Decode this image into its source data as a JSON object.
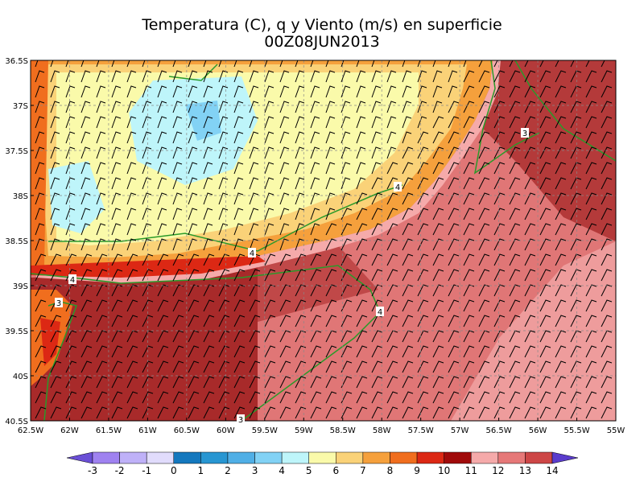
{
  "header": {
    "title": "Temperatura (C), q y Viento (m/s) en superficie",
    "subtitle": "00Z08JUN2013"
  },
  "map": {
    "x_labels": [
      "62.5W",
      "62W",
      "61.5W",
      "61W",
      "60.5W",
      "60W",
      "59.5W",
      "59W",
      "58.5W",
      "58W",
      "57.5W",
      "57W",
      "56.5W",
      "56W",
      "55.5W",
      "55W"
    ],
    "y_labels": [
      "36.5S",
      "37S",
      "37.5S",
      "38S",
      "38.5S",
      "39S",
      "39.5S",
      "40S",
      "40.5S"
    ],
    "contour_labels": [
      "3",
      "4",
      "4",
      "4",
      "3",
      "4",
      "3"
    ]
  },
  "colorbar": {
    "labels": [
      -3,
      -2,
      -1,
      0,
      1,
      2,
      3,
      4,
      5,
      6,
      7,
      8,
      9,
      10,
      11,
      12,
      13,
      14
    ],
    "colors": [
      "#6a4fd6",
      "#9f82f0",
      "#bfb1f8",
      "#e1dcfc",
      "#1478be",
      "#2896d2",
      "#50afe6",
      "#82d2f5",
      "#bef5fa",
      "#fafaaa",
      "#fad278",
      "#f5a03c",
      "#f06e1e",
      "#dc2814",
      "#a00a0a",
      "#f5aaaa",
      "#e67878",
      "#cd4646",
      "#a02828",
      "#5a3ccc"
    ]
  }
}
